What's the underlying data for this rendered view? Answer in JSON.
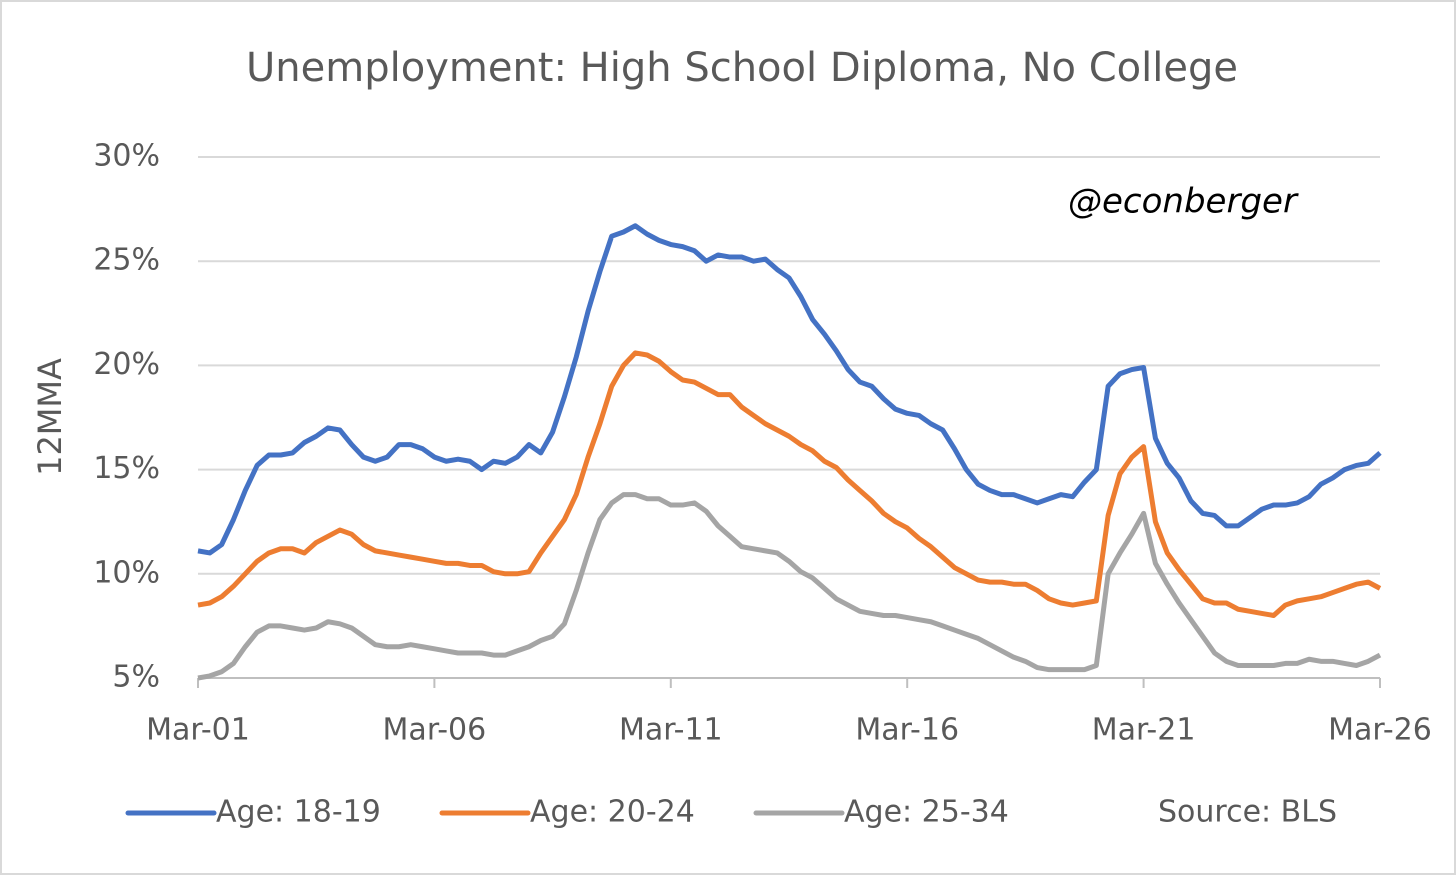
{
  "chart_data": {
    "type": "line",
    "title": "Unemployment: High School Diploma, No College",
    "ylabel": "12MMA",
    "annotations": [
      "@econberger",
      "Source: BLS"
    ],
    "categories": [
      "Mar-01",
      null,
      null,
      null,
      null,
      null,
      null,
      null,
      null,
      null,
      null,
      null,
      null,
      null,
      null,
      null,
      null,
      null,
      null,
      null,
      "Mar-06",
      null,
      null,
      null,
      null,
      null,
      null,
      null,
      null,
      null,
      null,
      null,
      null,
      null,
      null,
      null,
      null,
      null,
      null,
      null,
      "Mar-11",
      null,
      null,
      null,
      null,
      null,
      null,
      null,
      null,
      null,
      null,
      null,
      null,
      null,
      null,
      null,
      null,
      null,
      null,
      null,
      "Mar-16",
      null,
      null,
      null,
      null,
      null,
      null,
      null,
      null,
      null,
      null,
      null,
      null,
      null,
      null,
      null,
      null,
      null,
      null,
      null,
      "Mar-21",
      null,
      null,
      null,
      null,
      null,
      null,
      null,
      null,
      null,
      null,
      null,
      null,
      null,
      null,
      null,
      null,
      null,
      null,
      null,
      "Mar-26"
    ],
    "ylim": [
      5,
      30
    ],
    "yticks": [
      {
        "value": 5,
        "label": "5%"
      },
      {
        "value": 10,
        "label": "10%"
      },
      {
        "value": 15,
        "label": "15%"
      },
      {
        "value": 20,
        "label": "20%"
      },
      {
        "value": 25,
        "label": "25%"
      },
      {
        "value": 30,
        "label": "30%"
      }
    ],
    "grid": true,
    "legend": "bottom",
    "series": [
      {
        "name": "Age: 18-19",
        "color": "#4472c4",
        "values": [
          11.1,
          11.0,
          11.4,
          12.6,
          14.0,
          15.2,
          15.7,
          15.7,
          15.8,
          16.3,
          16.6,
          17.0,
          16.9,
          16.2,
          15.6,
          15.4,
          15.6,
          16.2,
          16.2,
          16.0,
          15.6,
          15.4,
          15.5,
          15.4,
          15.0,
          15.4,
          15.3,
          15.6,
          16.2,
          15.8,
          16.8,
          18.5,
          20.4,
          22.6,
          24.5,
          26.2,
          26.4,
          26.7,
          26.3,
          26.0,
          25.8,
          25.7,
          25.5,
          25.0,
          25.3,
          25.2,
          25.2,
          25.0,
          25.1,
          24.6,
          24.2,
          23.3,
          22.2,
          21.5,
          20.7,
          19.8,
          19.2,
          19.0,
          18.4,
          17.9,
          17.7,
          17.6,
          17.2,
          16.9,
          16.0,
          15.0,
          14.3,
          14.0,
          13.8,
          13.8,
          13.6,
          13.4,
          13.6,
          13.8,
          13.7,
          14.4,
          15.0,
          19.0,
          19.6,
          19.8,
          19.9,
          16.5,
          15.3,
          14.6,
          13.5,
          12.9,
          12.8,
          12.3,
          12.3,
          12.7,
          13.1,
          13.3,
          13.3,
          13.4,
          13.7,
          14.3,
          14.6,
          15.0,
          15.2,
          15.3,
          15.8
        ]
      },
      {
        "name": "Age: 20-24",
        "color": "#ed7d31",
        "values": [
          8.5,
          8.6,
          8.9,
          9.4,
          10.0,
          10.6,
          11.0,
          11.2,
          11.2,
          11.0,
          11.5,
          11.8,
          12.1,
          11.9,
          11.4,
          11.1,
          11.0,
          10.9,
          10.8,
          10.7,
          10.6,
          10.5,
          10.5,
          10.4,
          10.4,
          10.1,
          10.0,
          10.0,
          10.1,
          11.0,
          11.8,
          12.6,
          13.8,
          15.6,
          17.2,
          19.0,
          20.0,
          20.6,
          20.5,
          20.2,
          19.7,
          19.3,
          19.2,
          18.9,
          18.6,
          18.6,
          18.0,
          17.6,
          17.2,
          16.9,
          16.6,
          16.2,
          15.9,
          15.4,
          15.1,
          14.5,
          14.0,
          13.5,
          12.9,
          12.5,
          12.2,
          11.7,
          11.3,
          10.8,
          10.3,
          10.0,
          9.7,
          9.6,
          9.6,
          9.5,
          9.5,
          9.2,
          8.8,
          8.6,
          8.5,
          8.6,
          8.7,
          12.8,
          14.8,
          15.6,
          16.1,
          12.5,
          11.0,
          10.2,
          9.5,
          8.8,
          8.6,
          8.6,
          8.3,
          8.2,
          8.1,
          8.0,
          8.5,
          8.7,
          8.8,
          8.9,
          9.1,
          9.3,
          9.5,
          9.6,
          9.3
        ]
      },
      {
        "name": "Age: 25-34",
        "color": "#a5a5a5",
        "values": [
          5.0,
          5.1,
          5.3,
          5.7,
          6.5,
          7.2,
          7.5,
          7.5,
          7.4,
          7.3,
          7.4,
          7.7,
          7.6,
          7.4,
          7.0,
          6.6,
          6.5,
          6.5,
          6.6,
          6.5,
          6.4,
          6.3,
          6.2,
          6.2,
          6.2,
          6.1,
          6.1,
          6.3,
          6.5,
          6.8,
          7.0,
          7.6,
          9.2,
          11.0,
          12.6,
          13.4,
          13.8,
          13.8,
          13.6,
          13.6,
          13.3,
          13.3,
          13.4,
          13.0,
          12.3,
          11.8,
          11.3,
          11.2,
          11.1,
          11.0,
          10.6,
          10.1,
          9.8,
          9.3,
          8.8,
          8.5,
          8.2,
          8.1,
          8.0,
          8.0,
          7.9,
          7.8,
          7.7,
          7.5,
          7.3,
          7.1,
          6.9,
          6.6,
          6.3,
          6.0,
          5.8,
          5.5,
          5.4,
          5.4,
          5.4,
          5.4,
          5.6,
          10.0,
          11.0,
          11.9,
          12.9,
          10.5,
          9.5,
          8.6,
          7.8,
          7.0,
          6.2,
          5.8,
          5.6,
          5.6,
          5.6,
          5.6,
          5.7,
          5.7,
          5.9,
          5.8,
          5.8,
          5.7,
          5.6,
          5.8,
          6.1
        ]
      }
    ]
  }
}
